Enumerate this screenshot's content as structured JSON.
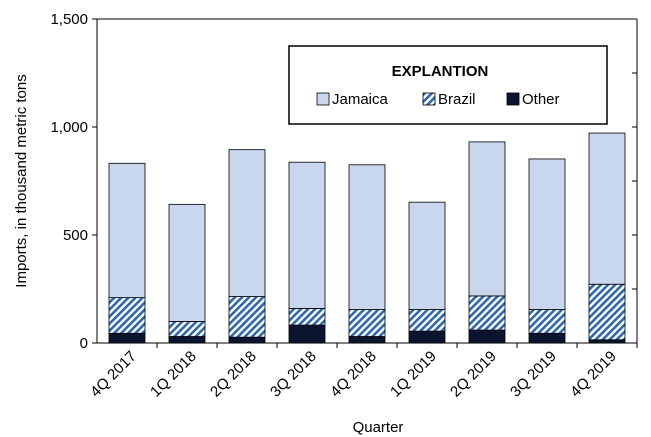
{
  "chart_data": {
    "type": "bar",
    "stacked": true,
    "xlabel": "Quarter",
    "ylabel": "Imports, in thousand metric tons",
    "ylim": [
      0,
      1500
    ],
    "yticks": [
      "0",
      "500",
      "1,000",
      "1,500"
    ],
    "grid": false,
    "legend": {
      "title": "EXPLANTION",
      "placement": "top-right"
    },
    "categories": [
      "4Q 2017",
      "1Q 2018",
      "2Q 2018",
      "3Q 2018",
      "4Q 2018",
      "1Q 2019",
      "2Q 2019",
      "3Q 2019",
      "4Q 2019"
    ],
    "series": [
      {
        "name": "Other",
        "values": [
          45,
          30,
          27,
          83,
          30,
          55,
          60,
          45,
          15
        ],
        "color": "#0b1530",
        "pattern": "solid"
      },
      {
        "name": "Brazil",
        "values": [
          165,
          70,
          188,
          77,
          125,
          100,
          158,
          110,
          257
        ],
        "color": "#2f67b1",
        "pattern": "hatch"
      },
      {
        "name": "Jamaica",
        "values": [
          622,
          542,
          680,
          677,
          670,
          497,
          713,
          697,
          700
        ],
        "color": "#c8d7ee",
        "pattern": "solid"
      }
    ]
  }
}
